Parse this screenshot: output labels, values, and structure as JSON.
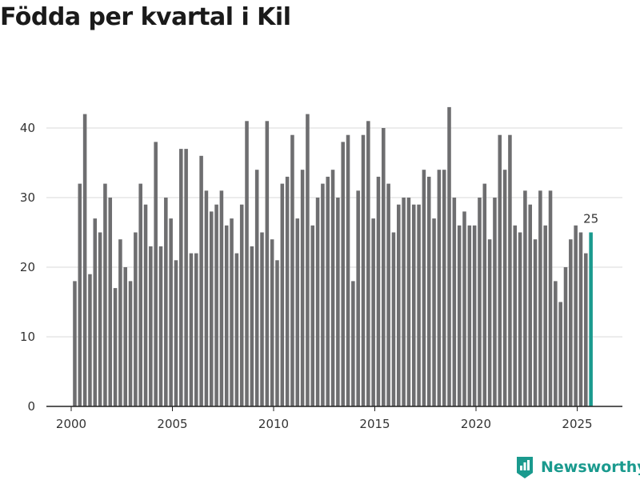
{
  "title": "Födda per kvartal i Kil",
  "brand": {
    "name": "Newsworthy",
    "icon": "newsworthy-logo-icon"
  },
  "chart_data": {
    "type": "bar",
    "title": "Födda per kvartal i Kil",
    "xlabel": "",
    "ylabel": "",
    "ylim": [
      0,
      43
    ],
    "yticks": [
      0,
      10,
      20,
      30,
      40
    ],
    "xticks": [
      2000,
      2005,
      2010,
      2015,
      2020,
      2025
    ],
    "x_start": 2000,
    "x_end": 2026,
    "quarter_start": 2000.0,
    "quarter_step": 0.25,
    "values": [
      18,
      32,
      42,
      19,
      27,
      25,
      32,
      30,
      17,
      24,
      20,
      18,
      25,
      32,
      29,
      23,
      38,
      23,
      30,
      27,
      21,
      37,
      37,
      22,
      22,
      36,
      31,
      28,
      29,
      31,
      26,
      27,
      22,
      29,
      41,
      23,
      34,
      25,
      41,
      24,
      21,
      32,
      33,
      39,
      27,
      34,
      42,
      26,
      30,
      32,
      33,
      34,
      30,
      38,
      39,
      18,
      31,
      39,
      41,
      27,
      33,
      40,
      32,
      25,
      29,
      30,
      30,
      29,
      29,
      34,
      33,
      27,
      34,
      34,
      43,
      30,
      26,
      28,
      26,
      26,
      30,
      32,
      24,
      30,
      39,
      34,
      39,
      26,
      25,
      31,
      29,
      24,
      31,
      26,
      31,
      18,
      15,
      20,
      24,
      26,
      25,
      22,
      25
    ],
    "highlight_last_label": "25",
    "colors": {
      "bar": "#6e6e70",
      "highlight": "#1a9a8e",
      "grid": "#d9d9d9",
      "axis": "#222222"
    }
  }
}
